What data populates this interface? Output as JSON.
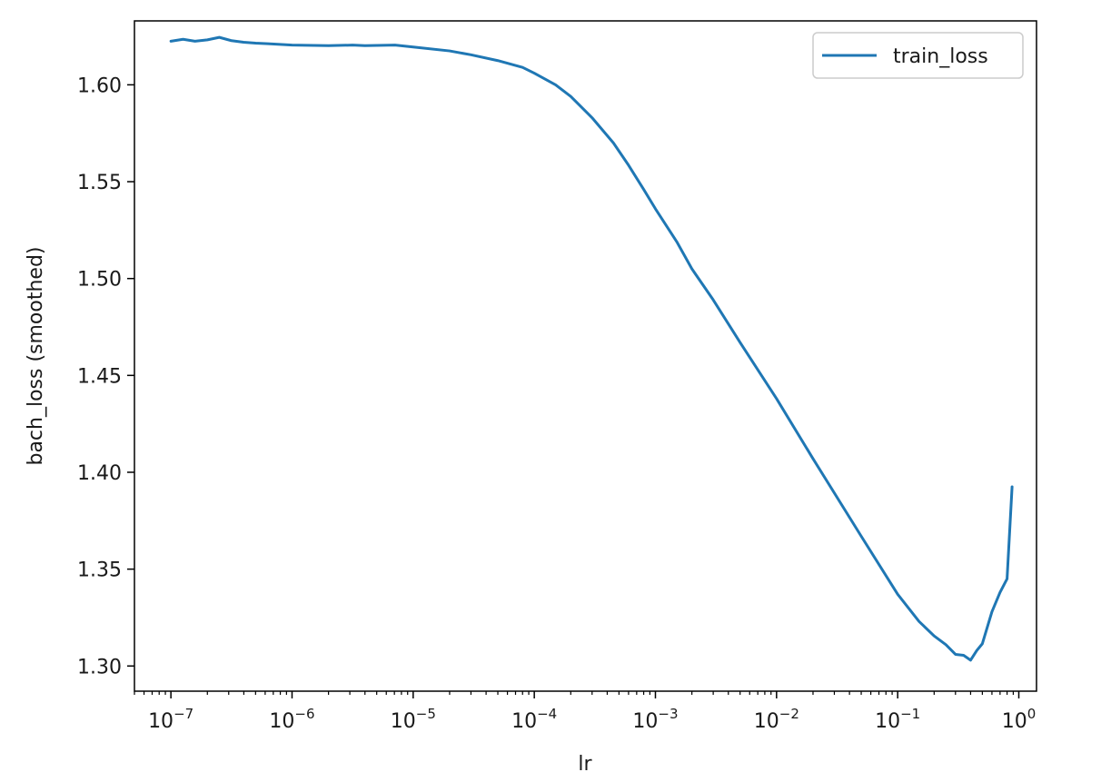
{
  "chart_data": {
    "type": "line",
    "title": "",
    "xlabel": "lr",
    "ylabel": "bach_loss (smoothed)",
    "xscale": "log",
    "xlim": [
      5e-08,
      1.4
    ],
    "ylim": [
      1.287,
      1.633
    ],
    "x_ticks": [
      {
        "value": 1e-07,
        "base": "10",
        "exp": "−7"
      },
      {
        "value": 1e-06,
        "base": "10",
        "exp": "−6"
      },
      {
        "value": 1e-05,
        "base": "10",
        "exp": "−5"
      },
      {
        "value": 0.0001,
        "base": "10",
        "exp": "−4"
      },
      {
        "value": 0.001,
        "base": "10",
        "exp": "−3"
      },
      {
        "value": 0.01,
        "base": "10",
        "exp": "−2"
      },
      {
        "value": 0.1,
        "base": "10",
        "exp": "−1"
      },
      {
        "value": 1,
        "base": "10",
        "exp": "0"
      }
    ],
    "y_ticks": [
      {
        "value": 1.3,
        "label": "1.30"
      },
      {
        "value": 1.35,
        "label": "1.35"
      },
      {
        "value": 1.4,
        "label": "1.40"
      },
      {
        "value": 1.45,
        "label": "1.45"
      },
      {
        "value": 1.5,
        "label": "1.50"
      },
      {
        "value": 1.55,
        "label": "1.55"
      },
      {
        "value": 1.6,
        "label": "1.60"
      }
    ],
    "grid": false,
    "legend": {
      "position": "top-right"
    },
    "series": [
      {
        "name": "train_loss",
        "color": "#1f77b4",
        "x": [
          1e-07,
          1.26e-07,
          1.58e-07,
          2e-07,
          2.51e-07,
          3.16e-07,
          3.98e-07,
          5.01e-07,
          6.31e-07,
          1e-06,
          2e-06,
          3.16e-06,
          4e-06,
          7.08e-06,
          1e-05,
          2e-05,
          3e-05,
          5e-05,
          8e-05,
          0.0001,
          0.00015,
          0.0002,
          0.0003,
          0.00045,
          0.0006,
          0.0008,
          0.001,
          0.0015,
          0.002,
          0.003,
          0.005,
          0.01,
          0.02,
          0.05,
          0.1,
          0.15,
          0.2,
          0.25,
          0.3,
          0.35,
          0.4,
          0.45,
          0.5,
          0.6,
          0.7,
          0.8,
          0.88
        ],
        "y": [
          1.6225,
          1.6235,
          1.6225,
          1.6232,
          1.6245,
          1.6228,
          1.622,
          1.6215,
          1.6212,
          1.6205,
          1.6202,
          1.6205,
          1.6202,
          1.6205,
          1.6195,
          1.6175,
          1.6155,
          1.6125,
          1.609,
          1.606,
          1.6,
          1.594,
          1.583,
          1.57,
          1.5585,
          1.546,
          1.536,
          1.519,
          1.505,
          1.489,
          1.467,
          1.438,
          1.407,
          1.367,
          1.337,
          1.323,
          1.3155,
          1.311,
          1.306,
          1.3055,
          1.303,
          1.308,
          1.3115,
          1.328,
          1.338,
          1.345,
          1.3925
        ]
      }
    ]
  }
}
